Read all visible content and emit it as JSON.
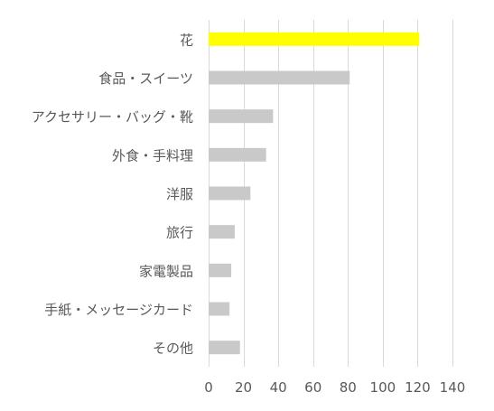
{
  "chart_data": {
    "type": "bar",
    "orientation": "horizontal",
    "categories": [
      "花",
      "食品・スイーツ",
      "アクセサリー・バッグ・靴",
      "外食・手料理",
      "洋服",
      "旅行",
      "家電製品",
      "手紙・メッセージカード",
      "その他"
    ],
    "values": [
      121,
      81,
      37,
      33,
      24,
      15,
      13,
      12,
      18
    ],
    "highlight_index": 0,
    "colors": {
      "highlight": "#FFFF00",
      "bar": "#C9C9C9",
      "grid": "#D9D9D9",
      "text": "#595959"
    },
    "xlim": [
      0,
      140
    ],
    "xticks": [
      0,
      20,
      40,
      60,
      80,
      100,
      120,
      140
    ],
    "grid": true,
    "title": "",
    "xlabel": "",
    "ylabel": ""
  }
}
